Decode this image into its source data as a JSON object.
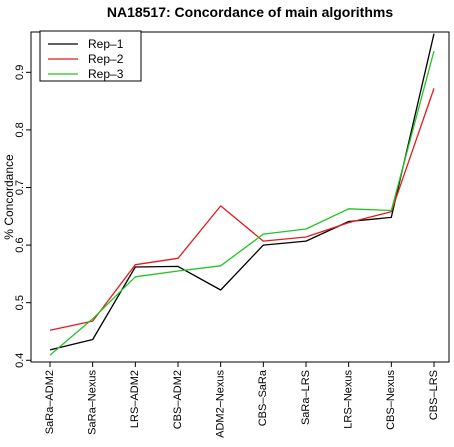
{
  "chart_data": {
    "type": "line",
    "title": "NA18517: Concordance of main algorithms",
    "xlabel": "",
    "ylabel": "% Concordance",
    "categories": [
      "SaRa–ADM2",
      "SaRa–Nexus",
      "LRS–ADM2",
      "CBS–ADM2",
      "ADM2–Nexus",
      "CBS–SaRa",
      "SaRa–LRS",
      "LRS–Nexus",
      "CBS–Nexus",
      "CBS–LRS"
    ],
    "yticks": [
      "0.4",
      "0.5",
      "0.6",
      "0.7",
      "0.8",
      "0.9"
    ],
    "ylim": [
      0.397,
      0.97
    ],
    "grid": false,
    "legend": "top-left",
    "series": [
      {
        "name": "Rep–1",
        "color": "#000000",
        "values": [
          0.418,
          0.436,
          0.562,
          0.563,
          0.522,
          0.6,
          0.607,
          0.641,
          0.648,
          0.967
        ]
      },
      {
        "name": "Rep–2",
        "color": "#e41a1c",
        "values": [
          0.452,
          0.468,
          0.566,
          0.577,
          0.668,
          0.607,
          0.614,
          0.639,
          0.658,
          0.872
        ]
      },
      {
        "name": "Rep–3",
        "color": "#22c322",
        "values": [
          0.409,
          0.472,
          0.545,
          0.555,
          0.564,
          0.619,
          0.628,
          0.663,
          0.66,
          0.937
        ]
      }
    ]
  }
}
